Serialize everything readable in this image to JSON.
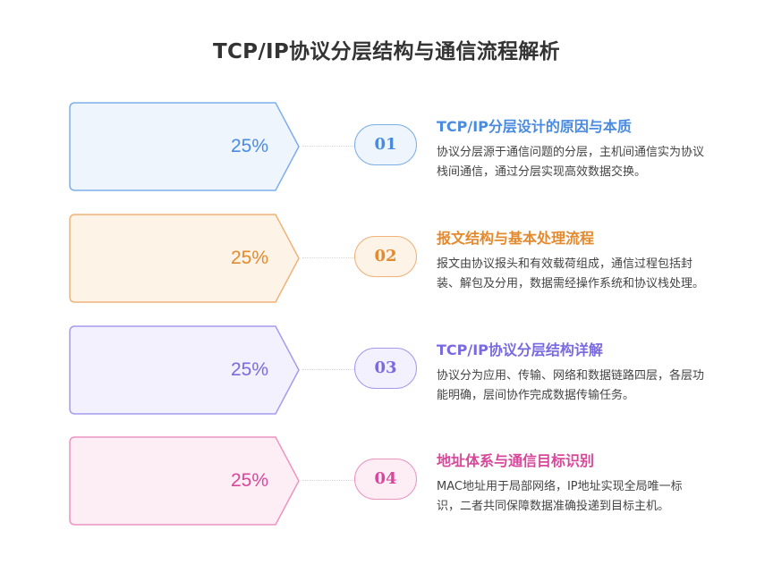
{
  "title": "TCP/IP协议分层结构与通信流程解析",
  "items": [
    {
      "number": "01",
      "percent": "25%",
      "heading": "TCP/IP分层设计的原因与本质",
      "description": "协议分层源于通信问题的分层，主机间通信实为协议栈间通信，通过分层实现高效数据交换。",
      "accent": "#4A8BE0",
      "fill": "#EEF5FD",
      "border": "#7EAEE8"
    },
    {
      "number": "02",
      "percent": "25%",
      "heading": "报文结构与基本处理流程",
      "description": "报文由协议报头和有效载荷组成，通信过程包括封装、解包及分用，数据需经操作系统和协议栈处理。",
      "accent": "#E48A2E",
      "fill": "#FEF3E7",
      "border": "#EFB27A"
    },
    {
      "number": "03",
      "percent": "25%",
      "heading": "TCP/IP协议分层结构详解",
      "description": "协议分为应用、传输、网络和数据链路四层，各层功能明确，层间协作完成数据传输任务。",
      "accent": "#7A6AE0",
      "fill": "#F3F1FE",
      "border": "#A69BEB"
    },
    {
      "number": "04",
      "percent": "25%",
      "heading": "地址体系与通信目标识别",
      "description": "MAC地址用于局部网络，IP地址实现全局唯一标识，二者共同保障数据准确投递到目标主机。",
      "accent": "#D8489A",
      "fill": "#FDEEF6",
      "border": "#EC93C2"
    }
  ]
}
